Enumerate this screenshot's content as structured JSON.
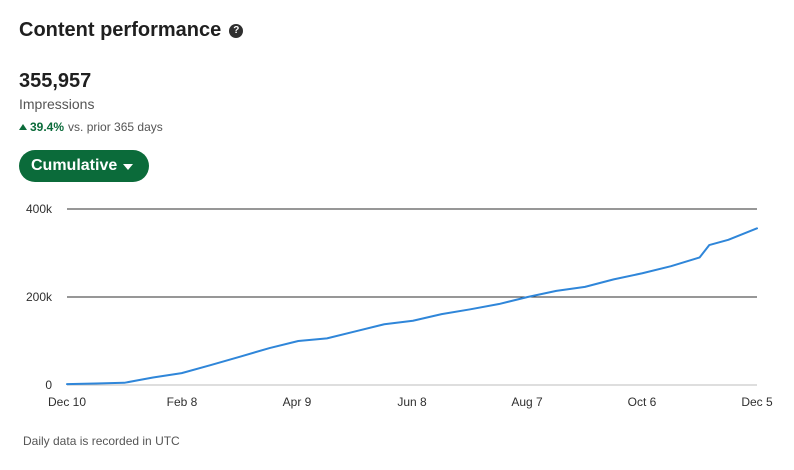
{
  "header": {
    "title": "Content performance",
    "help_icon": "question-circle-icon"
  },
  "metric": {
    "value": "355,957",
    "label": "Impressions",
    "change_percent": "39.4%",
    "comparison_text": "vs. prior 365 days",
    "trend_icon": "triangle-up-icon",
    "trend_color": "#0b6b3a"
  },
  "mode": {
    "label": "Cumulative",
    "icon": "caret-down-icon",
    "accent": "#0b6b3a"
  },
  "chart_data": {
    "type": "line",
    "x_ticks": [
      "Dec 10",
      "Feb 8",
      "Apr 9",
      "Jun 8",
      "Aug 7",
      "Oct 6",
      "Dec 5"
    ],
    "y_ticks": [
      "0",
      "200k",
      "400k"
    ],
    "ylim": [
      0,
      400000
    ],
    "grid": true,
    "series": [
      {
        "color": "#2f86d9",
        "points": [
          [
            "Dec 10",
            2000
          ],
          [
            "Dec 25",
            3500
          ],
          [
            "Jan 9",
            5000
          ],
          [
            "Jan 24",
            17000
          ],
          [
            "Feb 8",
            27000
          ],
          [
            "Feb 23",
            45000
          ],
          [
            "Mar 10",
            65000
          ],
          [
            "Mar 25",
            84000
          ],
          [
            "Apr 9",
            100000
          ],
          [
            "Apr 24",
            106000
          ],
          [
            "May 9",
            122000
          ],
          [
            "May 24",
            138000
          ],
          [
            "Jun 8",
            146000
          ],
          [
            "Jun 23",
            161000
          ],
          [
            "Jul 8",
            172000
          ],
          [
            "Jul 23",
            184000
          ],
          [
            "Aug 7",
            200000
          ],
          [
            "Aug 22",
            214000
          ],
          [
            "Sep 6",
            223000
          ],
          [
            "Sep 21",
            240000
          ],
          [
            "Oct 6",
            254000
          ],
          [
            "Oct 21",
            270000
          ],
          [
            "Nov 5",
            290000
          ],
          [
            "Nov 10",
            318000
          ],
          [
            "Nov 20",
            330000
          ],
          [
            "Dec 5",
            356000
          ]
        ]
      }
    ]
  },
  "footer": {
    "note": "Daily data is recorded in UTC"
  }
}
